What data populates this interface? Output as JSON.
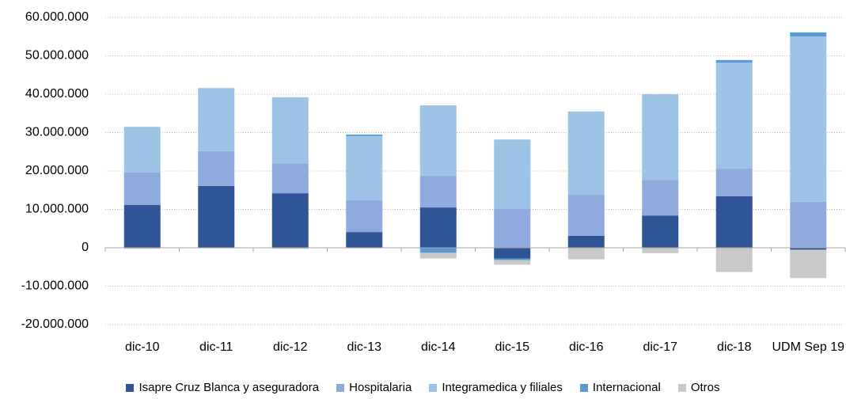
{
  "chart_data": {
    "type": "stacked_bar",
    "categories": [
      "dic-10",
      "dic-11",
      "dic-12",
      "dic-13",
      "dic-14",
      "dic-15",
      "dic-16",
      "dic-17",
      "dic-18",
      "UDM Sep 19"
    ],
    "series": [
      {
        "name": "Isapre Cruz Blanca y aseguradora",
        "color": "#2f5597",
        "values": [
          11200000,
          16100000,
          14200000,
          4100000,
          10500000,
          -2800000,
          3100000,
          8400000,
          13400000,
          -500000
        ]
      },
      {
        "name": "Hospitalaria",
        "color": "#8faadc",
        "values": [
          8400000,
          9100000,
          7800000,
          8300000,
          8300000,
          10100000,
          10700000,
          9300000,
          7200000,
          12000000
        ]
      },
      {
        "name": "Integramedica y filiales",
        "color": "#9dc3e6",
        "values": [
          11900000,
          16400000,
          17200000,
          16700000,
          18300000,
          18100000,
          21700000,
          22300000,
          27600000,
          43000000
        ]
      },
      {
        "name": "Internacional",
        "color": "#5b9bd5",
        "values": [
          0,
          0,
          0,
          400000,
          -1300000,
          -400000,
          0,
          0,
          700000,
          1100000
        ]
      },
      {
        "name": "Otros",
        "color": "#c9c9c9",
        "values": [
          -300000,
          0,
          -300000,
          0,
          -1500000,
          -1200000,
          -3000000,
          -1400000,
          -6300000,
          -7400000
        ]
      }
    ],
    "ylim": [
      -20000000,
      60000000
    ],
    "yticks": [
      {
        "value": -20000000,
        "label": "-20.000.000"
      },
      {
        "value": -10000000,
        "label": "-10.000.000"
      },
      0,
      {
        "value": 10000000,
        "label": "10.000.000"
      },
      {
        "value": 20000000,
        "label": "20.000.000"
      },
      {
        "value": 30000000,
        "label": "30.000.000"
      },
      {
        "value": 40000000,
        "label": "40.000.000"
      },
      {
        "value": 50000000,
        "label": "50.000.000"
      },
      {
        "value": 60000000,
        "label": "60.000.000"
      }
    ],
    "grid": true
  }
}
